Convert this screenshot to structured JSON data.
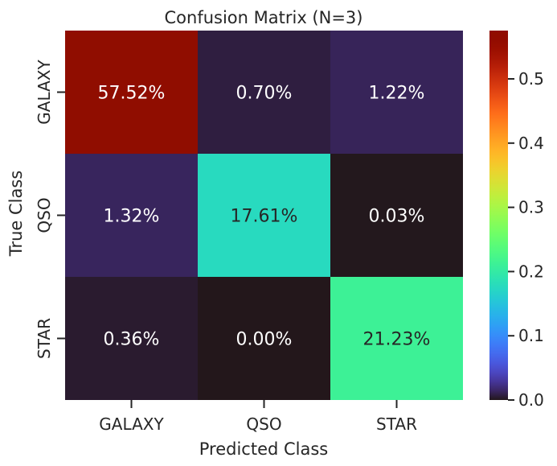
{
  "chart_data": {
    "type": "heatmap",
    "title": "Confusion Matrix (N=3)",
    "xlabel": "Predicted Class",
    "ylabel": "True Class",
    "x_categories": [
      "GALAXY",
      "QSO",
      "STAR"
    ],
    "y_categories": [
      "GALAXY",
      "QSO",
      "STAR"
    ],
    "values": [
      [
        0.5752,
        0.007,
        0.0122
      ],
      [
        0.0132,
        0.1761,
        0.0003
      ],
      [
        0.0036,
        0.0,
        0.2123
      ]
    ],
    "labels": [
      [
        "57.52%",
        "0.70%",
        "1.22%"
      ],
      [
        "1.32%",
        "17.61%",
        "0.03%"
      ],
      [
        "0.36%",
        "0.00%",
        "21.23%"
      ]
    ],
    "colormap": "turbo",
    "vmin": 0.0,
    "vmax": 0.5752,
    "colorbar_ticks": [
      0.0,
      0.1,
      0.2,
      0.3,
      0.4,
      0.5
    ],
    "colorbar_tick_labels": [
      "0.0",
      "0.1",
      "0.2",
      "0.3",
      "0.4",
      "0.5"
    ],
    "colors": {
      "text_dark": "#262626",
      "text_light": "#ffffff"
    }
  }
}
